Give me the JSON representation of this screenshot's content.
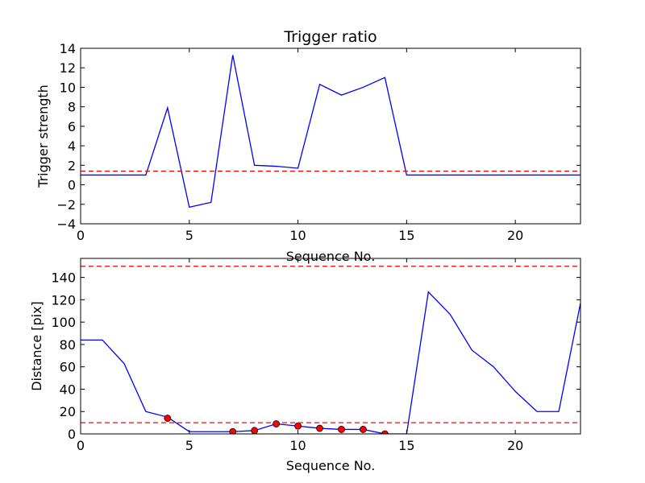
{
  "chart_data": [
    {
      "type": "line",
      "title": "Trigger ratio",
      "xlabel": "Sequence No.",
      "ylabel": "Trigger strength",
      "xlim": [
        0,
        23
      ],
      "ylim": [
        -4,
        14
      ],
      "xticks": [
        0,
        5,
        10,
        15,
        20
      ],
      "yticks": [
        -4,
        -2,
        0,
        2,
        4,
        6,
        8,
        10,
        12,
        14
      ],
      "grid": false,
      "series": [
        {
          "kind": "line",
          "color": "#0000ff",
          "x": [
            0,
            1,
            2,
            3,
            4,
            5,
            6,
            7,
            8,
            9,
            10,
            11,
            12,
            13,
            14,
            15,
            16,
            17,
            18,
            19,
            20,
            21,
            22,
            23
          ],
          "y": [
            1.0,
            1.0,
            1.0,
            1.0,
            7.9,
            -2.3,
            -1.8,
            13.3,
            2.0,
            1.9,
            1.7,
            10.3,
            9.2,
            10.0,
            11.0,
            1.0,
            1.0,
            1.0,
            1.0,
            1.0,
            1.0,
            1.0,
            1.0,
            1.0
          ]
        },
        {
          "kind": "hline",
          "color": "#ff0000",
          "dashed": true,
          "y": 1.4
        }
      ]
    },
    {
      "type": "line",
      "title": "",
      "xlabel": "Sequence No.",
      "ylabel": "Distance [pix]",
      "xlim": [
        0,
        23
      ],
      "ylim": [
        0,
        157
      ],
      "xticks": [
        0,
        5,
        10,
        15,
        20
      ],
      "yticks": [
        0,
        20,
        40,
        60,
        80,
        100,
        120,
        140
      ],
      "grid": false,
      "series": [
        {
          "kind": "line",
          "color": "#0000ff",
          "x": [
            0,
            1,
            2,
            3,
            4,
            5,
            6,
            7,
            8,
            9,
            10,
            11,
            12,
            13,
            14,
            15,
            16,
            17,
            18,
            19,
            20,
            21,
            22,
            23
          ],
          "y": [
            84,
            84,
            63,
            20,
            15,
            2,
            2,
            2,
            3,
            9,
            7,
            5,
            4,
            4,
            0,
            0,
            127,
            107,
            75,
            60,
            38,
            20,
            20,
            117
          ]
        },
        {
          "kind": "scatter",
          "color": "#ff0000",
          "x": [
            4,
            7,
            8,
            9,
            10,
            11,
            12,
            13,
            14
          ],
          "y": [
            14,
            2,
            3,
            9,
            7,
            5,
            4,
            4,
            0
          ]
        },
        {
          "kind": "hline",
          "color": "#ff0000",
          "dashed": true,
          "y": 150
        },
        {
          "kind": "hline",
          "color": "#ff0000",
          "dashed": true,
          "y": 10
        }
      ]
    }
  ]
}
